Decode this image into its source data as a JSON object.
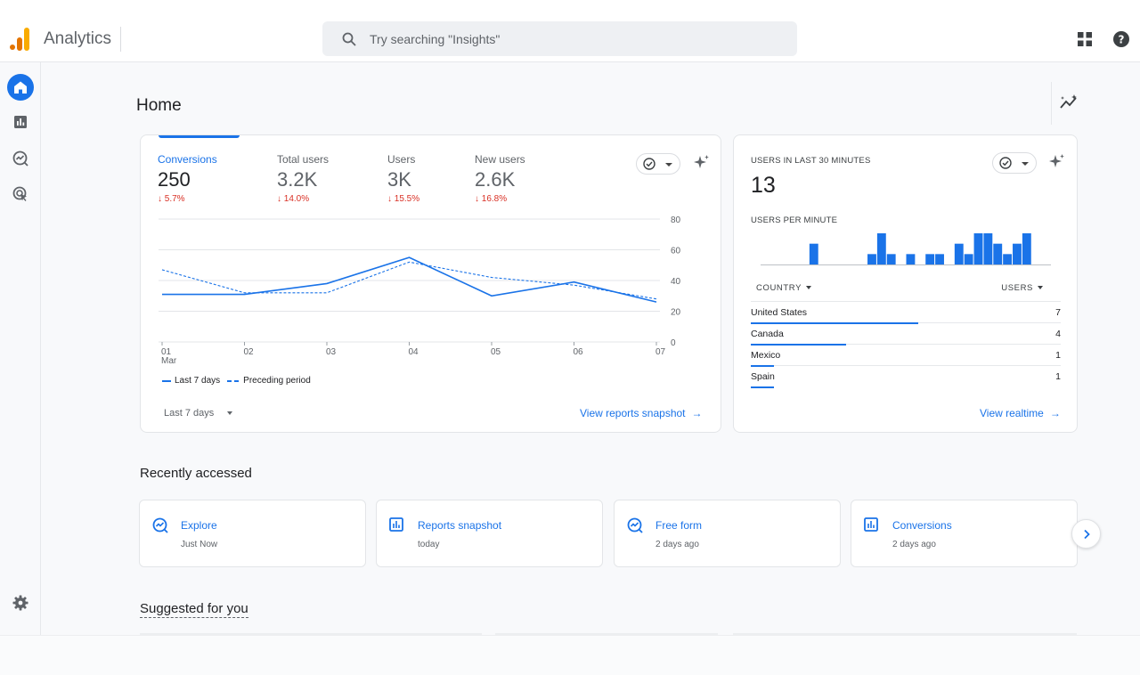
{
  "app": {
    "title": "Analytics",
    "brand_colors": [
      "#f9ab00",
      "#e37400"
    ]
  },
  "search": {
    "placeholder": "Try searching \"Insights\"",
    "icon": "search-icon"
  },
  "header_icons": [
    "apps-grid-icon",
    "help-icon"
  ],
  "nav": {
    "items": [
      {
        "name": "home",
        "icon": "home-icon",
        "active": true
      },
      {
        "name": "reports",
        "icon": "bar-chart-icon"
      },
      {
        "name": "explore",
        "icon": "explore-icon"
      },
      {
        "name": "advertising",
        "icon": "advertising-icon"
      }
    ],
    "settings_icon": "gear-icon"
  },
  "page": {
    "title": "Home"
  },
  "overview": {
    "metrics": [
      {
        "label": "Conversions",
        "value": "250",
        "change": "5.7%",
        "direction": "down"
      },
      {
        "label": "Total users",
        "value": "3.2K",
        "change": "14.0%",
        "direction": "down"
      },
      {
        "label": "Users",
        "value": "3K",
        "change": "15.5%",
        "direction": "down"
      },
      {
        "label": "New users",
        "value": "2.6K",
        "change": "16.8%",
        "direction": "down"
      }
    ],
    "date_range": "Last 7 days",
    "link": "View reports snapshot",
    "arrow": "→"
  },
  "chart_data": [
    {
      "type": "line",
      "x": [
        "01",
        "02",
        "03",
        "04",
        "05",
        "06",
        "07"
      ],
      "x_sub_label": "Mar",
      "y_ticks": [
        "80",
        "60",
        "40",
        "20",
        "0"
      ],
      "ylim": [
        0,
        80
      ],
      "grid": true,
      "legend_position": "bottom-left",
      "series": [
        {
          "name": "Last 7 days",
          "style": "solid",
          "color": "#1a73e8",
          "values": [
            31,
            31,
            38,
            55,
            30,
            39,
            26
          ]
        },
        {
          "name": "Preceding period",
          "style": "dashed",
          "color": "#1a73e8",
          "values": [
            47,
            32,
            32,
            52,
            42,
            37,
            28
          ]
        }
      ]
    },
    {
      "type": "bar",
      "title": "USERS PER MINUTE",
      "color": "#1a73e8",
      "values": [
        0,
        0,
        0,
        0,
        0,
        2,
        0,
        0,
        0,
        0,
        0,
        1,
        3,
        1,
        0,
        1,
        0,
        1,
        1,
        0,
        2,
        1,
        3,
        3,
        2,
        1,
        2,
        3,
        0,
        0
      ]
    }
  ],
  "realtime": {
    "label": "USERS IN LAST 30 MINUTES",
    "value": "13",
    "per_minute_label": "USERS PER MINUTE",
    "country_header": "COUNTRY",
    "users_header": "USERS",
    "countries": [
      {
        "name": "United States",
        "users": "7",
        "share": 1.0
      },
      {
        "name": "Canada",
        "users": "4",
        "share": 0.57
      },
      {
        "name": "Mexico",
        "users": "1",
        "share": 0.14
      },
      {
        "name": "Spain",
        "users": "1",
        "share": 0.14
      }
    ],
    "link": "View realtime",
    "arrow": "→"
  },
  "recent": {
    "title": "Recently accessed",
    "items": [
      {
        "title": "Explore",
        "time": "Just Now",
        "icon": "explore-icon"
      },
      {
        "title": "Reports snapshot",
        "time": "today",
        "icon": "report-icon"
      },
      {
        "title": "Free form",
        "time": "2 days ago",
        "icon": "explore-icon"
      },
      {
        "title": "Conversions",
        "time": "2 days ago",
        "icon": "report-icon"
      }
    ]
  },
  "suggested": {
    "title": "Suggested for you"
  }
}
